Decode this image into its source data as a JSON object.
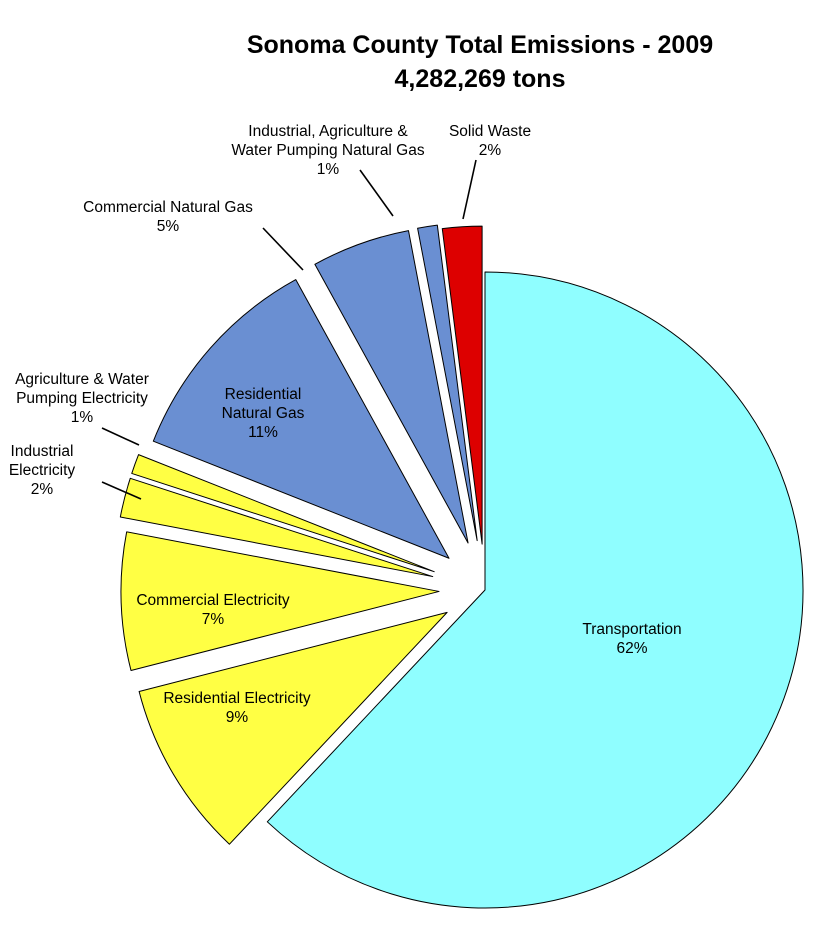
{
  "chart_data": {
    "type": "pie",
    "title": "Sonoma County Total Emissions - 2009",
    "subtitle": "4,282,269 tons",
    "slices": [
      {
        "label": [
          "Transportation",
          "62%"
        ],
        "value": 62,
        "color": "#8ffeff"
      },
      {
        "label": [
          "Residential Electricity",
          "9%"
        ],
        "value": 9,
        "color": "#ffff44"
      },
      {
        "label": [
          "Commercial Electricity",
          "7%"
        ],
        "value": 7,
        "color": "#ffff44"
      },
      {
        "label": [
          "Industrial",
          "Electricity",
          "2%"
        ],
        "value": 2,
        "color": "#ffff44"
      },
      {
        "label": [
          "Agriculture & Water",
          "Pumping Electricity",
          "1%"
        ],
        "value": 1,
        "color": "#ffff44"
      },
      {
        "label": [
          "Residential",
          "Natural Gas",
          "11%"
        ],
        "value": 11,
        "color": "#6a8fd2"
      },
      {
        "label": [
          "Commercial Natural Gas",
          "5%"
        ],
        "value": 5,
        "color": "#6a8fd2"
      },
      {
        "label": [
          "Industrial, Agriculture &",
          "Water Pumping Natural Gas",
          "1%"
        ],
        "value": 1,
        "color": "#6a8fd2"
      },
      {
        "label": [
          "Solid Waste",
          "2%"
        ],
        "value": 2,
        "color": "#dd0000"
      }
    ]
  }
}
